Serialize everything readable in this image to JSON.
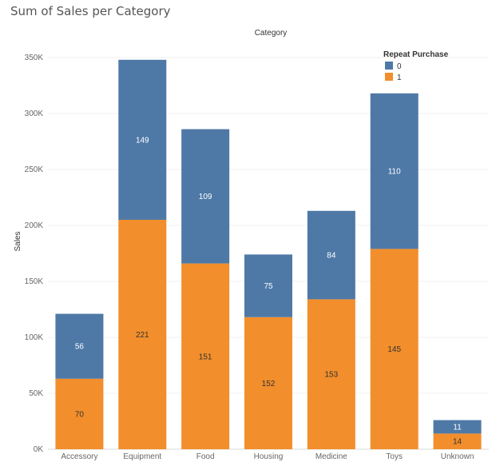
{
  "chart_data": {
    "type": "bar",
    "stacked": true,
    "title": "Sum of Sales per Category",
    "column_header": "Category",
    "ylabel": "Sales",
    "xlabel": "",
    "categories": [
      "Accessory",
      "Equipment",
      "Food",
      "Housing",
      "Medicine",
      "Toys",
      "Unknown"
    ],
    "ylim": [
      0,
      360000
    ],
    "yticks": [
      0,
      50000,
      100000,
      150000,
      200000,
      250000,
      300000,
      350000
    ],
    "ytick_labels": [
      "0K",
      "50K",
      "100K",
      "150K",
      "200K",
      "250K",
      "300K",
      "350K"
    ],
    "grid": true,
    "legend": {
      "title": "Repeat Purchase",
      "placement": "top-right",
      "entries": [
        {
          "label": "0",
          "color": "#4e79a7"
        },
        {
          "label": "1",
          "color": "#f28e2b"
        }
      ]
    },
    "series": [
      {
        "name": "1",
        "color": "#f28e2b",
        "label_color": "#333333",
        "values": [
          63000,
          205000,
          166000,
          118000,
          134000,
          179000,
          14000
        ],
        "labels": [
          "70",
          "221",
          "151",
          "152",
          "153",
          "145",
          "14"
        ]
      },
      {
        "name": "0",
        "color": "#4e79a7",
        "label_color": "#ffffff",
        "values": [
          58000,
          143000,
          120000,
          56000,
          79000,
          139000,
          12000
        ],
        "labels": [
          "56",
          "149",
          "109",
          "75",
          "84",
          "110",
          "11"
        ]
      }
    ]
  }
}
